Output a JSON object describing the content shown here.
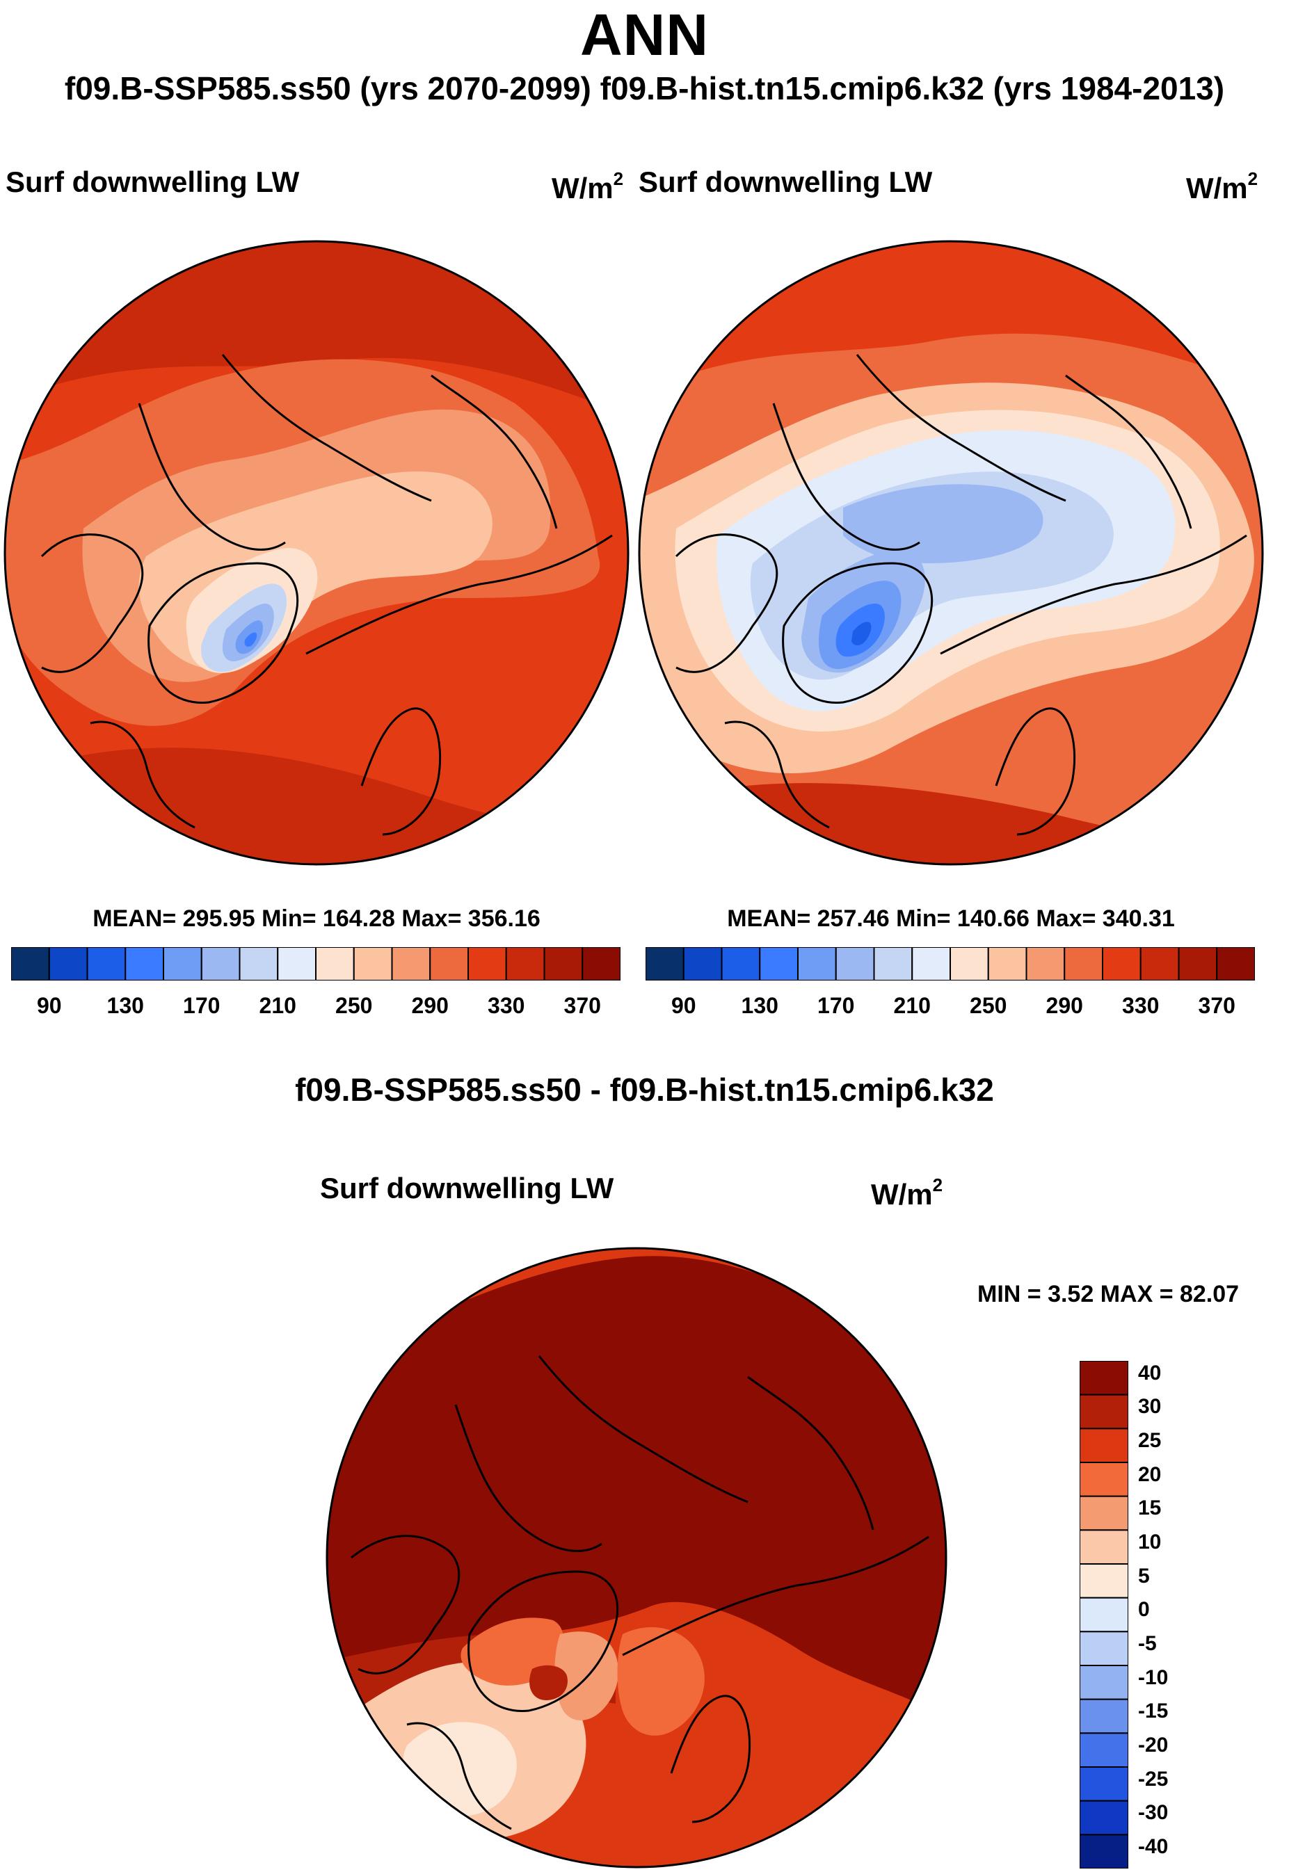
{
  "title": "ANN",
  "subtitle": "f09.B-SSP585.ss50 (yrs 2070-2099)  f09.B-hist.tn15.cmip6.k32 (yrs 1984-2013)",
  "panels": [
    {
      "variable": "Surf downwelling LW",
      "units": "W/m",
      "units_exp": "2",
      "stats": "MEAN= 295.95  Min= 164.28  Max= 356.16"
    },
    {
      "variable": "Surf downwelling LW",
      "units": "W/m",
      "units_exp": "2",
      "stats": "MEAN= 257.46  Min= 140.66  Max= 340.31"
    }
  ],
  "colorbar_main": {
    "colors": [
      "#08306b",
      "#0d47c8",
      "#1c5ee8",
      "#3a7bff",
      "#6f9cf5",
      "#9bb8f3",
      "#c5d6f5",
      "#e2ecfb",
      "#fde3cf",
      "#fbc3a0",
      "#f59a70",
      "#ed6a3e",
      "#e33c14",
      "#c92a0c",
      "#a81a06",
      "#8b0c02"
    ],
    "labels": [
      "90",
      "130",
      "170",
      "210",
      "250",
      "290",
      "330",
      "370"
    ]
  },
  "diff": {
    "title": "f09.B-SSP585.ss50 - f09.B-hist.tn15.cmip6.k32",
    "variable": "Surf downwelling LW",
    "units": "W/m",
    "units_exp": "2",
    "minmax": "MIN =   3.52 MAX =  82.07",
    "colorbar": {
      "colors": [
        "#8b0c02",
        "#b2200a",
        "#dc3812",
        "#f26a3a",
        "#f59b72",
        "#fbc8a9",
        "#fde8d8",
        "#dce9fb",
        "#b9cff5",
        "#93b2f1",
        "#6b91ee",
        "#4472ea",
        "#2254e0",
        "#0f39c2",
        "#061f86"
      ],
      "labels": [
        "40",
        "30",
        "25",
        "20",
        "15",
        "10",
        "5",
        "0",
        "-5",
        "-10",
        "-15",
        "-20",
        "-25",
        "-30",
        "-40"
      ]
    }
  }
}
